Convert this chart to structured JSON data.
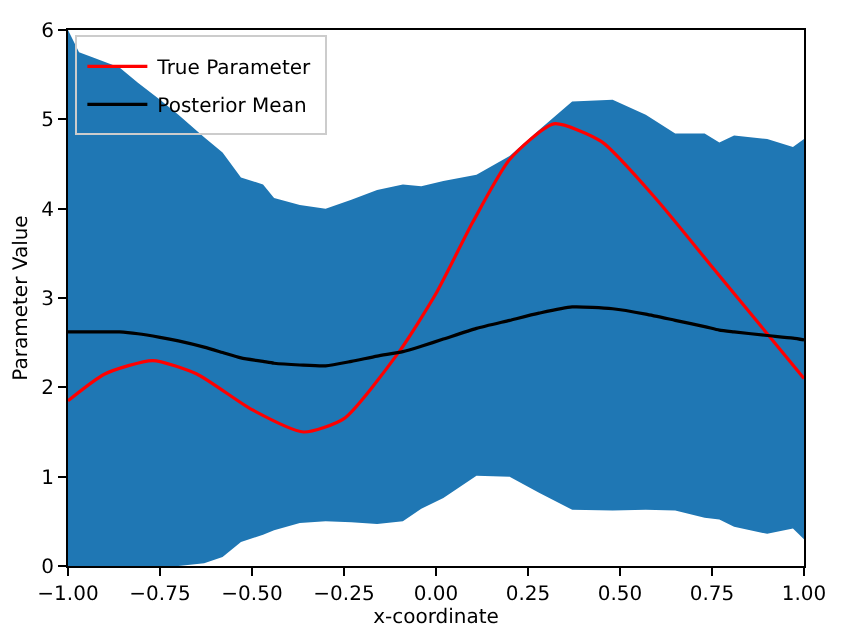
{
  "chart_data": {
    "type": "line",
    "xlabel": "x-coordinate",
    "ylabel": "Parameter Value",
    "xlim": [
      -1.0,
      1.0
    ],
    "ylim": [
      0,
      6
    ],
    "xticks": [
      {
        "value": -1.0,
        "label": "−1.00"
      },
      {
        "value": -0.75,
        "label": "−0.75"
      },
      {
        "value": -0.5,
        "label": "−0.50"
      },
      {
        "value": -0.25,
        "label": "−0.25"
      },
      {
        "value": 0,
        "label": "0.00"
      },
      {
        "value": 0.25,
        "label": "0.25"
      },
      {
        "value": 0.5,
        "label": "0.50"
      },
      {
        "value": 0.75,
        "label": "0.75"
      },
      {
        "value": 1.0,
        "label": "1.00"
      }
    ],
    "yticks": [
      0,
      1,
      2,
      3,
      4,
      5,
      6
    ],
    "legend": "top left",
    "series": [
      {
        "name": "True Parameter",
        "color": "#ff0000",
        "x": [
          -1,
          -0.9,
          -0.77,
          -0.65,
          -0.5,
          -0.36,
          -0.25,
          -0.1,
          0,
          0.1,
          0.2,
          0.32,
          0.45,
          0.6,
          0.75,
          0.9,
          1.0
        ],
        "values": [
          1.85,
          2.15,
          2.3,
          2.15,
          1.75,
          1.5,
          1.65,
          2.4,
          3.05,
          3.85,
          4.55,
          4.95,
          4.75,
          4.1,
          3.35,
          2.6,
          2.1
        ]
      },
      {
        "name": "Posterior Mean",
        "color": "#000000",
        "x": [
          -1,
          -0.97,
          -0.93,
          -0.86,
          -0.81,
          -0.75,
          -0.7,
          -0.63,
          -0.58,
          -0.53,
          -0.47,
          -0.44,
          -0.37,
          -0.3,
          -0.23,
          -0.16,
          -0.09,
          -0.04,
          0.02,
          0.11,
          0.2,
          0.28,
          0.37,
          0.48,
          0.57,
          0.65,
          0.73,
          0.77,
          0.81,
          0.9,
          0.97,
          1.0
        ],
        "values": [
          2.62,
          2.62,
          2.62,
          2.62,
          2.6,
          2.56,
          2.52,
          2.45,
          2.39,
          2.33,
          2.29,
          2.27,
          2.25,
          2.24,
          2.29,
          2.35,
          2.4,
          2.46,
          2.54,
          2.66,
          2.75,
          2.83,
          2.9,
          2.88,
          2.82,
          2.75,
          2.68,
          2.64,
          2.62,
          2.58,
          2.55,
          2.53
        ],
        "lower": [
          0,
          0,
          0,
          0,
          0,
          0,
          0,
          0.03,
          0.1,
          0.27,
          0.35,
          0.4,
          0.48,
          0.5,
          0.49,
          0.47,
          0.5,
          0.64,
          0.76,
          1.01,
          1.0,
          0.82,
          0.63,
          0.62,
          0.63,
          0.62,
          0.54,
          0.52,
          0.44,
          0.36,
          0.42,
          0.3
        ],
        "upper": [
          6,
          5.75,
          5.69,
          5.58,
          5.41,
          5.22,
          5.05,
          4.8,
          4.63,
          4.35,
          4.27,
          4.12,
          4.04,
          4.0,
          4.1,
          4.21,
          4.27,
          4.25,
          4.31,
          4.38,
          4.59,
          4.88,
          5.2,
          5.22,
          5.05,
          4.84,
          4.84,
          4.74,
          4.82,
          4.78,
          4.69,
          4.78
        ]
      }
    ]
  }
}
